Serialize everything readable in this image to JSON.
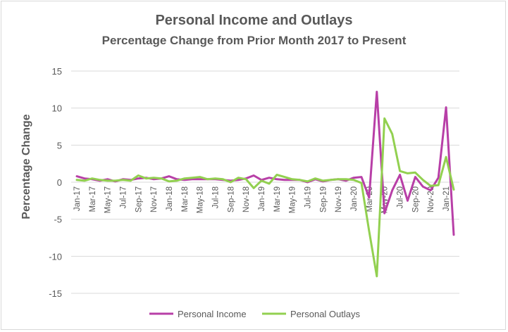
{
  "chart_data": {
    "type": "line",
    "title": "Personal Income and Outlays",
    "subtitle": "Percentage Change from Prior Month 2017 to Present",
    "xlabel": "",
    "ylabel": "Percentage Change",
    "ylim": [
      -15,
      15
    ],
    "yticks": [
      "15",
      "10",
      "5",
      "0",
      "-5",
      "-10",
      "-15"
    ],
    "grid": true,
    "legend_position": "bottom",
    "categories": [
      "Jan-17",
      "Feb-17",
      "Mar-17",
      "Apr-17",
      "May-17",
      "Jun-17",
      "Jul-17",
      "Aug-17",
      "Sep-17",
      "Oct-17",
      "Nov-17",
      "Dec-17",
      "Jan-18",
      "Feb-18",
      "Mar-18",
      "Apr-18",
      "May-18",
      "Jun-18",
      "Jul-18",
      "Aug-18",
      "Sep-18",
      "Oct-18",
      "Nov-18",
      "Dec-18",
      "Jan-19",
      "Feb-19",
      "Mar-19",
      "Apr-19",
      "May-19",
      "Jun-19",
      "Jul-19",
      "Aug-19",
      "Sep-19",
      "Oct-19",
      "Nov-19",
      "Dec-19",
      "Jan-20",
      "Feb-20",
      "Mar-20",
      "Apr-20",
      "May-20",
      "Jun-20",
      "Jul-20",
      "Aug-20",
      "Sep-20",
      "Oct-20",
      "Nov-20",
      "Dec-20",
      "Jan-21",
      "Feb-21"
    ],
    "tick_labels": [
      "Jan-17",
      "Mar-17",
      "May-17",
      "Jul-17",
      "Sep-17",
      "Nov-17",
      "Jan-18",
      "Mar-18",
      "May-18",
      "Jul-18",
      "Sep-18",
      "Nov-18",
      "Jan-19",
      "Mar-19",
      "May-19",
      "Jul-19",
      "Sep-19",
      "Nov-19",
      "Jan-20",
      "Mar-20",
      "May-20",
      "Jul-20",
      "Sep-20",
      "Nov-20",
      "Jan-21"
    ],
    "series": [
      {
        "name": "Personal Income",
        "color": "#b83fa7",
        "values": [
          0.8,
          0.5,
          0.4,
          0.2,
          0.4,
          0.1,
          0.4,
          0.3,
          0.5,
          0.6,
          0.4,
          0.5,
          0.8,
          0.4,
          0.3,
          0.4,
          0.4,
          0.4,
          0.4,
          0.3,
          0.2,
          0.3,
          0.5,
          0.9,
          0.3,
          0.6,
          0.4,
          0.3,
          0.3,
          0.3,
          0.0,
          0.4,
          0.1,
          0.3,
          0.4,
          0.2,
          0.6,
          0.7,
          -2.1,
          12.2,
          -4.2,
          -1.1,
          1.0,
          -2.5,
          0.7,
          -0.6,
          -1.1,
          0.6,
          10.1,
          -7.1
        ]
      },
      {
        "name": "Personal Outlays",
        "color": "#92d050",
        "values": [
          0.3,
          0.2,
          0.5,
          0.3,
          0.2,
          0.2,
          0.3,
          0.2,
          0.9,
          0.5,
          0.6,
          0.5,
          0.1,
          0.2,
          0.5,
          0.6,
          0.7,
          0.4,
          0.5,
          0.4,
          0.0,
          0.6,
          0.4,
          -0.8,
          0.2,
          -0.2,
          1.0,
          0.7,
          0.4,
          0.3,
          0.1,
          0.5,
          0.2,
          0.3,
          0.4,
          0.4,
          0.3,
          -0.1,
          -6.6,
          -12.7,
          8.6,
          6.5,
          1.5,
          1.2,
          1.3,
          0.3,
          -0.5,
          -0.4,
          3.4,
          -1.0
        ]
      }
    ]
  }
}
